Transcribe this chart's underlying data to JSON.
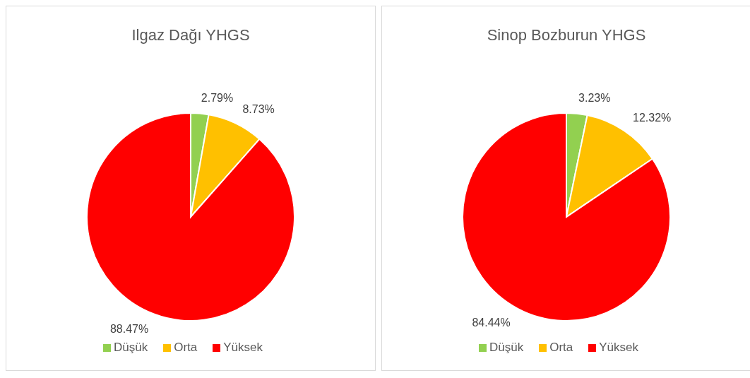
{
  "chart_data": [
    {
      "type": "pie",
      "title": "Ilgaz Dağı YHGS",
      "categories": [
        "Düşük",
        "Orta",
        "Yüksek"
      ],
      "values": [
        2.79,
        8.73,
        88.47
      ],
      "colors": [
        "#92d050",
        "#ffc000",
        "#ff0000"
      ],
      "value_labels": [
        "2.79%",
        "8.73%",
        "88.47%"
      ],
      "legend": "bottom"
    },
    {
      "type": "pie",
      "title": "Sinop Bozburun YHGS",
      "categories": [
        "Düşük",
        "Orta",
        "Yüksek"
      ],
      "values": [
        3.23,
        12.32,
        84.44
      ],
      "colors": [
        "#92d050",
        "#ffc000",
        "#ff0000"
      ],
      "value_labels": [
        "3.23%",
        "12.32%",
        "84.44%"
      ],
      "legend": "bottom"
    }
  ]
}
